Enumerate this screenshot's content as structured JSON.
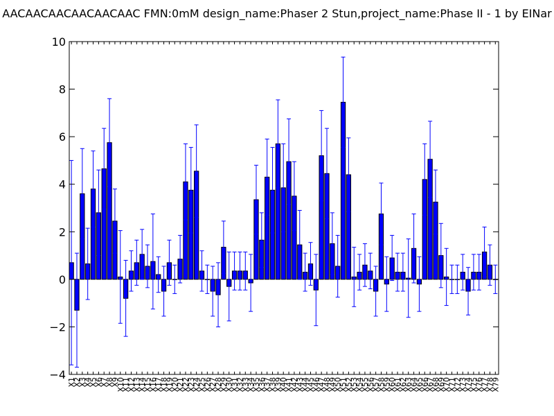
{
  "chart_data": {
    "type": "bar",
    "title": "AACAACAACAACAACAAC  FMN:0mM  design_name:Phaser 2 Stun,project_name:Phase II - 1 by EINar",
    "xlabel": "",
    "ylabel": "",
    "ylim": [
      -4,
      10
    ],
    "yticks": [
      -4,
      -2,
      0,
      2,
      4,
      6,
      8,
      10
    ],
    "grid": false,
    "bar_color": "#0000ff",
    "categories": [
      "X1",
      "X2",
      "X3",
      "X4",
      "X5",
      "X6",
      "X7",
      "X8",
      "X9",
      "X10",
      "X11",
      "X12",
      "X13",
      "X14",
      "X15",
      "X16",
      "X17",
      "X18",
      "X19",
      "X20",
      "X21",
      "X22",
      "X23",
      "X24",
      "X25",
      "X26",
      "X27",
      "X28",
      "X29",
      "X30",
      "X31",
      "X32",
      "X33",
      "X34",
      "X35",
      "X36",
      "X37",
      "X38",
      "X39",
      "X40",
      "X41",
      "X42",
      "X43",
      "X44",
      "X45",
      "X46",
      "X47",
      "X48",
      "X49",
      "X50",
      "X51",
      "X52",
      "X53",
      "X54",
      "X55",
      "X56",
      "X57",
      "X58",
      "X59",
      "X60",
      "X61",
      "X62",
      "X63",
      "X64",
      "X65",
      "X66",
      "X67",
      "X68",
      "X69",
      "X70",
      "X71",
      "X72",
      "X73",
      "X74",
      "X75",
      "X76",
      "X77",
      "X78",
      "X79"
    ],
    "values": [
      0.7,
      -1.3,
      3.6,
      0.65,
      3.8,
      2.8,
      4.65,
      5.75,
      2.45,
      0.1,
      -0.8,
      0.35,
      0.7,
      1.05,
      0.55,
      0.75,
      0.2,
      -0.5,
      0.7,
      0.0,
      0.85,
      4.1,
      3.75,
      4.55,
      0.35,
      0.0,
      -0.5,
      -0.65,
      1.35,
      -0.3,
      0.35,
      0.35,
      0.35,
      -0.15,
      3.35,
      1.65,
      4.3,
      3.75,
      5.7,
      3.85,
      4.95,
      3.5,
      1.45,
      0.3,
      0.65,
      -0.45,
      5.2,
      4.45,
      1.5,
      0.55,
      7.45,
      4.4,
      0.1,
      0.3,
      0.6,
      0.35,
      -0.5,
      2.75,
      -0.2,
      0.9,
      0.3,
      0.3,
      0.05,
      1.3,
      -0.2,
      4.2,
      5.05,
      3.25,
      1.0,
      0.1,
      0.0,
      0.0,
      0.3,
      -0.5,
      0.3,
      0.3,
      1.15,
      0.6,
      0.0
    ],
    "errors": [
      4.3,
      2.4,
      1.9,
      1.5,
      1.6,
      1.8,
      1.7,
      1.85,
      1.35,
      1.95,
      1.6,
      0.85,
      0.95,
      1.05,
      0.9,
      2.0,
      0.75,
      1.05,
      0.95,
      0.6,
      1.0,
      1.6,
      1.8,
      1.95,
      0.85,
      0.6,
      1.05,
      1.35,
      1.1,
      1.45,
      0.8,
      0.8,
      0.8,
      1.2,
      1.45,
      1.15,
      1.6,
      1.8,
      1.85,
      1.85,
      1.8,
      1.45,
      1.45,
      0.8,
      0.9,
      1.5,
      1.9,
      1.9,
      1.3,
      1.3,
      1.9,
      1.55,
      1.25,
      0.75,
      0.9,
      0.75,
      1.05,
      1.3,
      1.15,
      0.95,
      0.8,
      0.8,
      1.65,
      1.45,
      1.15,
      1.5,
      1.6,
      1.35,
      1.35,
      1.2,
      0.6,
      0.6,
      0.75,
      1.0,
      0.75,
      0.75,
      1.05,
      0.85,
      0.6
    ]
  }
}
